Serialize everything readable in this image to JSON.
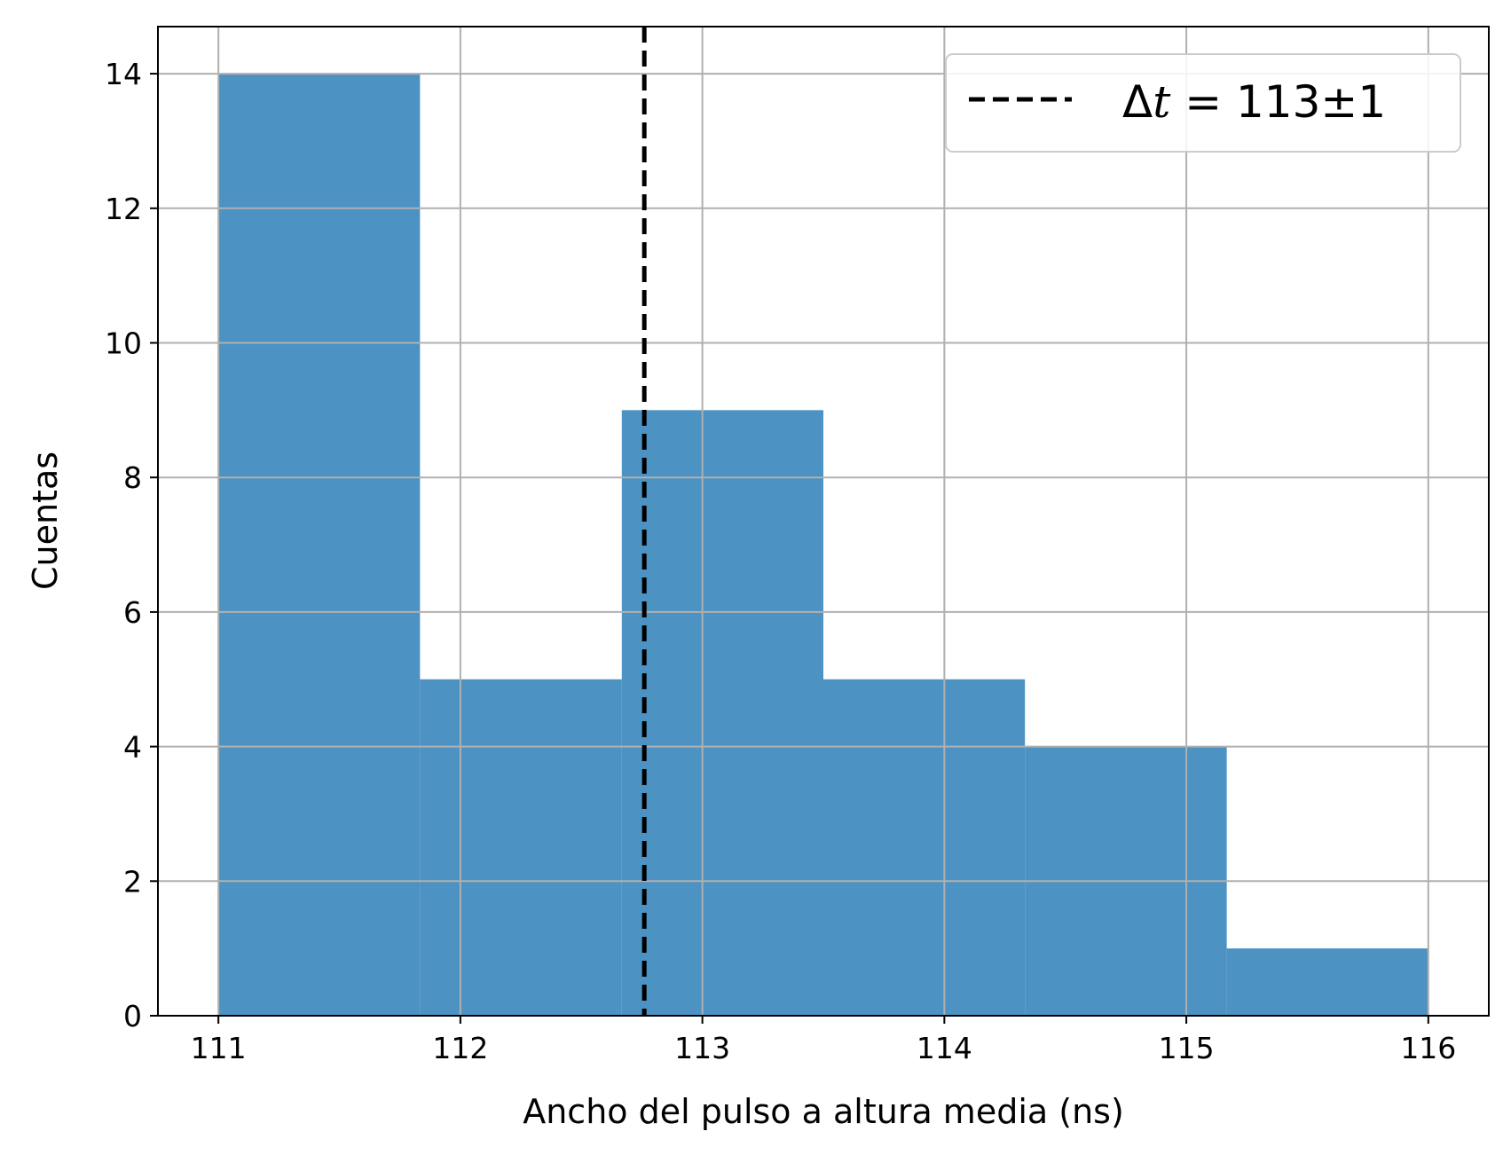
{
  "chart_data": {
    "type": "bar",
    "subtype": "histogram",
    "title": "",
    "xlabel": "Ancho del pulso a altura media (ns)",
    "ylabel": "Cuentas",
    "xlim": [
      110.75,
      116.25
    ],
    "ylim": [
      0,
      14.7
    ],
    "xticks": [
      111,
      112,
      113,
      114,
      115,
      116
    ],
    "yticks": [
      0,
      2,
      4,
      6,
      8,
      10,
      12,
      14
    ],
    "bin_edges": [
      111.0,
      111.833,
      112.667,
      113.5,
      114.333,
      115.167,
      116.0
    ],
    "counts": [
      14,
      5,
      9,
      5,
      4,
      1
    ],
    "bar_color": "#4c92c3",
    "grid": true,
    "vline": {
      "x": 112.76,
      "style": "dashed",
      "color": "#000000",
      "legend_label": {
        "prefix": "Δ",
        "symbol": "t",
        "rest": " = 113±1"
      }
    },
    "legend_position": "top-right"
  }
}
